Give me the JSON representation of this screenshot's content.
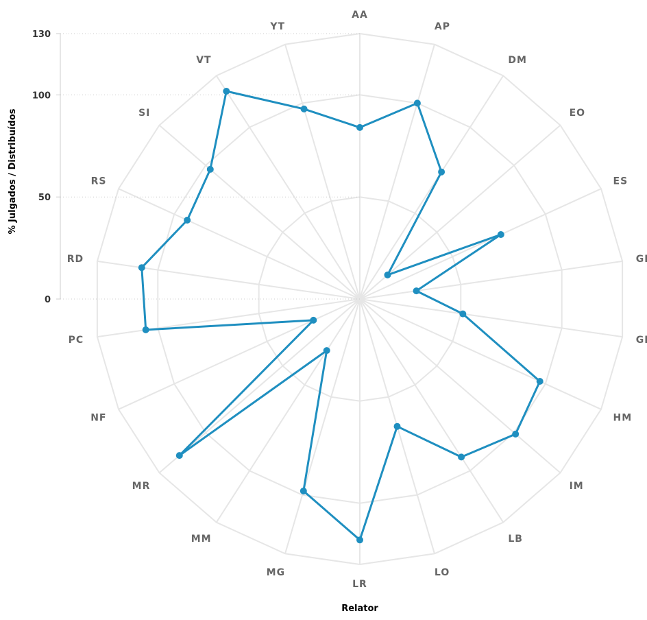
{
  "chart_data": {
    "type": "radar",
    "xlabel": "Relator",
    "ylabel": "% Julgados / Distribuídos",
    "ylim": [
      0,
      130
    ],
    "yticks": [
      "0",
      "50",
      "100",
      "130"
    ],
    "categories": [
      "AA",
      "AP",
      "DM",
      "EO",
      "ES",
      "GB",
      "GR",
      "HM",
      "IM",
      "LB",
      "LO",
      "LR",
      "MG",
      "MM",
      "MR",
      "NF",
      "PC",
      "RD",
      "RS",
      "SI",
      "VT",
      "YT"
    ],
    "series": [
      {
        "name": "",
        "color": "#1f8fc0",
        "values": [
          84,
          100,
          74,
          18,
          76,
          28,
          51,
          97,
          101,
          92,
          65,
          118,
          98,
          30,
          117,
          25,
          106,
          108,
          93,
          97,
          121,
          97
        ]
      }
    ],
    "grid": true
  }
}
